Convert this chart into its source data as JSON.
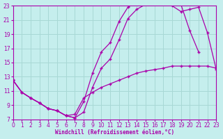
{
  "xlabel": "Windchill (Refroidissement éolien,°C)",
  "bg_color": "#c5eeed",
  "grid_color": "#a8d8d5",
  "line_color": "#aa00aa",
  "xlim": [
    0,
    23
  ],
  "ylim": [
    7,
    23
  ],
  "xticks": [
    0,
    1,
    2,
    3,
    4,
    5,
    6,
    7,
    8,
    9,
    10,
    11,
    12,
    13,
    14,
    15,
    16,
    17,
    18,
    19,
    20,
    21,
    22,
    23
  ],
  "yticks": [
    7,
    9,
    11,
    13,
    15,
    17,
    19,
    21,
    23
  ],
  "curve1_x": [
    0,
    1,
    2,
    3,
    4,
    5,
    6,
    7,
    8,
    9,
    10,
    11,
    12,
    13,
    14,
    15,
    16,
    17,
    18,
    19,
    20,
    21
  ],
  "curve1_y": [
    12.5,
    10.8,
    10.0,
    9.3,
    8.5,
    8.2,
    7.5,
    7.2,
    9.5,
    13.5,
    16.5,
    17.8,
    20.8,
    22.8,
    23.5,
    24.1,
    24.3,
    24.3,
    23.7,
    23.2,
    19.5,
    16.5
  ],
  "curve2_x": [
    0,
    1,
    2,
    3,
    4,
    5,
    6,
    7,
    8,
    9,
    10,
    11,
    12,
    13,
    14,
    15,
    16,
    17,
    18,
    19,
    20,
    21,
    22,
    23
  ],
  "curve2_y": [
    12.5,
    10.8,
    10.0,
    9.3,
    8.5,
    8.2,
    7.5,
    7.2,
    8.0,
    11.5,
    14.2,
    15.5,
    18.2,
    21.2,
    22.5,
    23.2,
    23.5,
    23.2,
    23.0,
    22.2,
    22.5,
    22.8,
    19.2,
    14.0
  ],
  "curve3_x": [
    0,
    1,
    2,
    3,
    4,
    5,
    6,
    7,
    8,
    9,
    10,
    11,
    12,
    13,
    14,
    15,
    16,
    17,
    18,
    19,
    20,
    21,
    22,
    23
  ],
  "curve3_y": [
    12.5,
    10.8,
    10.0,
    9.3,
    8.5,
    8.2,
    7.5,
    7.7,
    10.0,
    10.8,
    11.5,
    12.0,
    12.5,
    13.0,
    13.5,
    13.8,
    14.0,
    14.2,
    14.5,
    14.5,
    14.5,
    14.5,
    14.5,
    14.2
  ]
}
